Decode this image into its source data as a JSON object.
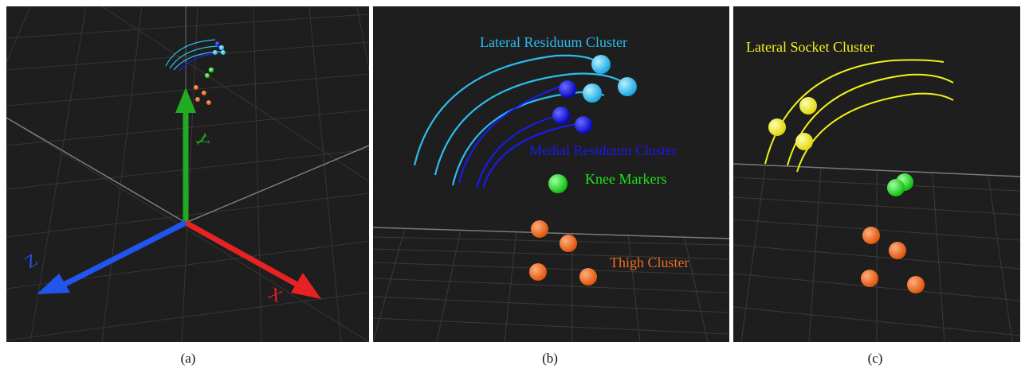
{
  "panels": {
    "a": {
      "caption": "(a)",
      "axes": {
        "x_label": "X",
        "y_label": "Y",
        "z_label": "Z"
      }
    },
    "b": {
      "caption": "(b)",
      "labels": {
        "lateral_residuum": "Lateral Residuum Cluster",
        "medial_residuum": "Medial Residuum Cluster",
        "knee": "Knee Markers",
        "thigh": "Thigh Cluster"
      }
    },
    "c": {
      "caption": "(c)",
      "labels": {
        "lateral_socket": "Lateral Socket Cluster"
      }
    }
  },
  "colors": {
    "background": "#1e1e1e",
    "grid": "#3a3a3a",
    "lateral_residuum": "#2bbdf0",
    "medial_residuum": "#1a1aee",
    "knee": "#1ee61e",
    "thigh": "#f06a22",
    "lateral_socket": "#f2f21a",
    "axis_x": "#e62222",
    "axis_y": "#22aa22",
    "axis_z": "#2255ee"
  }
}
